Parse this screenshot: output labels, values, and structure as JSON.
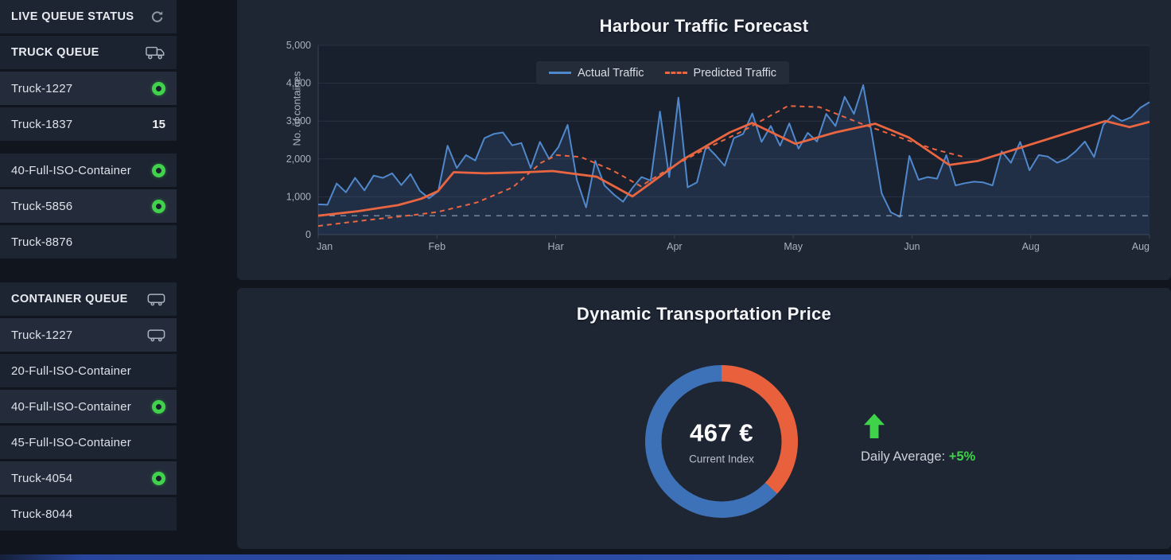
{
  "sidebar": {
    "groups": [
      {
        "rows": [
          {
            "label": "LIVE QUEUE STATUS",
            "kind": "header",
            "icon": "refresh",
            "tone": "mid"
          }
        ]
      },
      {
        "rows": [
          {
            "label": "TRUCK QUEUE",
            "kind": "header",
            "icon": "truck",
            "tone": "dark"
          },
          {
            "label": "Truck-1227",
            "kind": "item",
            "status": "online",
            "tone": "light"
          },
          {
            "label": "Truck-1837",
            "kind": "item",
            "count": "15",
            "tone": "mid"
          }
        ]
      },
      {
        "rows": [
          {
            "label": "40-Full-ISO-Container",
            "kind": "item",
            "status": "online",
            "tone": "mid"
          },
          {
            "label": "Truck-5856",
            "kind": "item",
            "status": "online",
            "tone": "light"
          },
          {
            "label": "Truck-8876",
            "kind": "item",
            "tone": "mid"
          }
        ]
      },
      {
        "rows": [
          {
            "label": "CONTAINER QUEUE",
            "kind": "header",
            "icon": "container",
            "tone": "mid"
          },
          {
            "label": "Truck-1227",
            "kind": "item",
            "icon": "container",
            "tone": "light"
          },
          {
            "label": "20-Full-ISO-Container",
            "kind": "item",
            "tone": "dark"
          },
          {
            "label": "40-Full-ISO-Container",
            "kind": "item",
            "status": "online",
            "tone": "light"
          },
          {
            "label": "45-Full-ISO-Container",
            "kind": "item",
            "tone": "mid"
          },
          {
            "label": "Truck-4054",
            "kind": "item",
            "status": "online",
            "tone": "light"
          },
          {
            "label": "Truck-8044",
            "kind": "item",
            "tone": "dark"
          }
        ]
      }
    ]
  },
  "price_panel": {
    "daily_average_label": "Daily Average: ",
    "daily_average_value": "+5%"
  },
  "chart_data": [
    {
      "type": "line",
      "title": "Harbour Traffic Forecast",
      "xlabel": "",
      "ylabel": "No. of containes",
      "x_tick_labels": [
        "Jan",
        "Feb",
        "Har",
        "Apr",
        "May",
        "Jun",
        "Aug",
        "Aug"
      ],
      "y_tick_labels": [
        "0",
        "1,000",
        "2,000",
        "3,000",
        "4,000",
        "5,000"
      ],
      "y_tick_values": [
        0,
        1000,
        2000,
        3000,
        4000,
        5000
      ],
      "ylim": [
        0,
        5000
      ],
      "grid": "horizontal",
      "legend": {
        "position": "top-center",
        "entries": [
          {
            "label": "Actual Traffic",
            "color": "#5088cc",
            "style": "solid"
          },
          {
            "label": "Predicted Traffic",
            "color": "#e96641",
            "style": "dashed"
          }
        ]
      },
      "series": [
        {
          "name": "Actual Traffic",
          "color": "#5088cc",
          "style": "solid",
          "width": 2,
          "fill": "rgba(79,131,198,0.17)",
          "values": [
            800,
            790,
            1350,
            1120,
            1500,
            1170,
            1560,
            1500,
            1620,
            1310,
            1600,
            1160,
            960,
            1150,
            2350,
            1760,
            2100,
            1960,
            2550,
            2660,
            2700,
            2360,
            2420,
            1760,
            2450,
            2000,
            2310,
            2900,
            1450,
            720,
            1950,
            1300,
            1060,
            870,
            1230,
            1520,
            1430,
            3250,
            1520,
            3620,
            1250,
            1380,
            2350,
            2100,
            1820,
            2550,
            2660,
            3200,
            2450,
            2870,
            2350,
            2940,
            2270,
            2690,
            2460,
            3190,
            2870,
            3640,
            3190,
            3950,
            2560,
            1090,
            590,
            470,
            2080,
            1450,
            1520,
            1480,
            2100,
            1300,
            1360,
            1400,
            1380,
            1300,
            2200,
            1900,
            2450,
            1700,
            2100,
            2060,
            1900,
            2000,
            2200,
            2460,
            2050,
            2900,
            3150,
            3000,
            3100,
            3350,
            3500
          ]
        },
        {
          "name": "Predicted Traffic",
          "color": "#e96641",
          "style": "dashed",
          "width": 2,
          "points": [
            [
              0,
              230
            ],
            [
              5.7,
              380
            ],
            [
              11.5,
              520
            ],
            [
              14.4,
              600
            ],
            [
              19.1,
              850
            ],
            [
              23.4,
              1250
            ],
            [
              26.8,
              1900
            ],
            [
              28.7,
              2100
            ],
            [
              31.6,
              2050
            ],
            [
              35.4,
              1700
            ],
            [
              38.8,
              1280
            ],
            [
              42.6,
              1800
            ],
            [
              46.9,
              2300
            ],
            [
              51.2,
              2750
            ],
            [
              56.5,
              3400
            ],
            [
              60.3,
              3370
            ],
            [
              65.1,
              2950
            ],
            [
              70.8,
              2500
            ],
            [
              74.2,
              2250
            ],
            [
              77.5,
              2060
            ]
          ]
        },
        {
          "name": "Actual Traffic Trend",
          "color": "#e96641",
          "style": "solid",
          "width": 2.8,
          "points": [
            [
              0,
              500
            ],
            [
              4.8,
              620
            ],
            [
              9.6,
              780
            ],
            [
              12.4,
              950
            ],
            [
              14.4,
              1150
            ],
            [
              16.3,
              1650
            ],
            [
              20.1,
              1620
            ],
            [
              24.9,
              1650
            ],
            [
              28.2,
              1680
            ],
            [
              33.5,
              1530
            ],
            [
              37.8,
              1010
            ],
            [
              44,
              2000
            ],
            [
              49.5,
              2700
            ],
            [
              52.2,
              2950
            ],
            [
              57.4,
              2400
            ],
            [
              62.2,
              2700
            ],
            [
              67,
              2930
            ],
            [
              71.1,
              2560
            ],
            [
              75.9,
              1840
            ],
            [
              79.4,
              1950
            ],
            [
              94.7,
              3000
            ],
            [
              97.6,
              2840
            ],
            [
              100,
              2980
            ]
          ]
        },
        {
          "name": "Baseline Threshold",
          "color": "#9db2c7",
          "style": "dashed",
          "width": 1.3,
          "points": [
            [
              0,
              500
            ],
            [
              100,
              500
            ]
          ]
        }
      ]
    },
    {
      "type": "donut",
      "title": "Dynamic Transportation Price",
      "center_value": "467 €",
      "center_caption": "Current Index",
      "segments": [
        {
          "label": "upper",
          "pct": 37,
          "color": "#e8613c"
        },
        {
          "label": "remainder",
          "pct": 63,
          "color": "#3e72b8"
        }
      ],
      "annotation": {
        "text": "Daily Average: ",
        "highlight": "+5%",
        "highlight_color": "#3fd34a",
        "arrow": "up"
      }
    }
  ],
  "colors": {
    "panel_bg": "#1e2533",
    "page_bg": "#11151e",
    "status_green": "#41d24b",
    "accent_blue_bar": "#2e54ad"
  }
}
